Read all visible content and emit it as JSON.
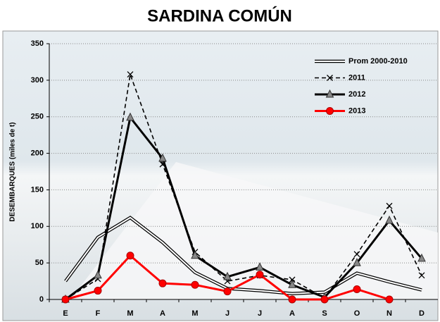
{
  "chart_data": {
    "type": "line",
    "title": "SARDINA COMÚN",
    "y_label": "DESEMBARQUES (miles de t)",
    "categories": [
      "E",
      "F",
      "M",
      "A",
      "M",
      "J",
      "J",
      "A",
      "S",
      "O",
      "N",
      "D"
    ],
    "ylim": [
      0,
      350
    ],
    "yticks": [
      0,
      50,
      100,
      150,
      200,
      250,
      300,
      350
    ],
    "grid": true,
    "legend": "top-right",
    "series": [
      {
        "name": "Prom 2000-2010",
        "color": "#000000",
        "style": "double",
        "marker": "none",
        "values": [
          25,
          85,
          112,
          78,
          37,
          15,
          12,
          8,
          10,
          36,
          24,
          13
        ]
      },
      {
        "name": "2011",
        "color": "#000000",
        "style": "dashed",
        "marker": "x",
        "values": [
          0,
          28,
          308,
          185,
          65,
          25,
          33,
          27,
          2,
          62,
          128,
          33
        ]
      },
      {
        "name": "2012",
        "color": "#000000",
        "style": "solid",
        "marker": "triangle",
        "values": [
          0,
          33,
          249,
          193,
          60,
          31,
          44,
          20,
          3,
          50,
          108,
          56
        ]
      },
      {
        "name": "2013",
        "color": "#ff0000",
        "style": "solid",
        "marker": "circle",
        "values": [
          0,
          12,
          60,
          22,
          20,
          11,
          34,
          0,
          0,
          14,
          0,
          null
        ]
      }
    ]
  }
}
